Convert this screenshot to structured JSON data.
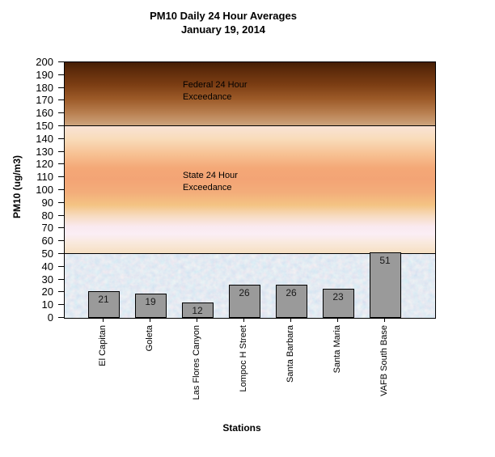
{
  "chart_data": {
    "type": "bar",
    "title": "PM10 Daily 24 Hour Averages",
    "subtitle": "January 19, 2014",
    "xlabel": "Stations",
    "ylabel": "PM10 (ug/m3)",
    "categories": [
      "El Capitan",
      "Goleta",
      "Las Flores Canyon",
      "Lompoc H Street",
      "Santa Barbara",
      "Santa Maria",
      "VAFB South Base"
    ],
    "values": [
      21,
      19,
      12,
      26,
      26,
      23,
      51
    ],
    "ylim": [
      0,
      200
    ],
    "ytick_step": 10,
    "grid": false,
    "legend": false,
    "bar_color": "#9a9a9a",
    "bar_border_color": "#000000",
    "zones": [
      {
        "name": "federal-exceedance",
        "label": "Federal 24 Hour\nExceedance",
        "from": 150,
        "to": 200,
        "colors": [
          "#451e05",
          "#cda47d"
        ]
      },
      {
        "name": "state-exceedance",
        "label": "State 24 Hour\nExceedance",
        "from": 50,
        "to": 150,
        "colors": [
          "#f9e3d6",
          "#f4a877",
          "#f4c383",
          "#fbeef5",
          "#f6dfc2"
        ]
      },
      {
        "name": "below-standards",
        "label": "",
        "from": 0,
        "to": 50,
        "colors": [
          "#c4d2e3",
          "#e7cede"
        ]
      }
    ]
  }
}
